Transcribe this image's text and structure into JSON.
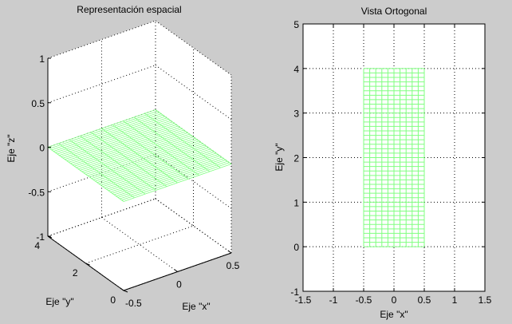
{
  "chart_data": [
    {
      "type": "surface-mesh-3d",
      "title": "Representación espacial",
      "xlabel": "Eje \"x\"",
      "ylabel": "Eje \"y\"",
      "zlabel": "Eje \"z\"",
      "xlim": [
        -0.5,
        0.5
      ],
      "ylim": [
        0,
        4
      ],
      "zlim": [
        -1,
        1
      ],
      "xticks": [
        -0.5,
        0,
        0.5
      ],
      "xtick_labels": [
        "-0.5",
        "0",
        "0.5"
      ],
      "yticks": [
        0,
        2,
        4
      ],
      "ytick_labels": [
        "0",
        "2",
        "4"
      ],
      "zticks": [
        -1,
        -0.5,
        0,
        0.5,
        1
      ],
      "ztick_labels": [
        "-1",
        "-0.5",
        "0",
        "0.5",
        "1"
      ],
      "grid": true,
      "mesh": {
        "x_start": -0.5,
        "x_end": 0.5,
        "x_step": 0.1,
        "y_start": 0,
        "y_end": 4,
        "y_step": 0.1,
        "z": 0,
        "color": "#80ff80"
      }
    },
    {
      "type": "mesh-2d",
      "title": "Vista Ortogonal",
      "xlabel": "Eje \"x\"",
      "ylabel": "Eje \"y\"",
      "xlim": [
        -1.5,
        1.5
      ],
      "ylim": [
        -1,
        5
      ],
      "xticks": [
        -1.5,
        -1,
        -0.5,
        0,
        0.5,
        1,
        1.5
      ],
      "xtick_labels": [
        "-1.5",
        "-1",
        "-0.5",
        "0",
        "0.5",
        "1",
        "1.5"
      ],
      "yticks": [
        -1,
        0,
        1,
        2,
        3,
        4,
        5
      ],
      "ytick_labels": [
        "-1",
        "0",
        "1",
        "2",
        "3",
        "4",
        "5"
      ],
      "grid": true,
      "mesh": {
        "x_start": -0.5,
        "x_end": 0.5,
        "x_step": 0.1,
        "y_start": 0,
        "y_end": 4,
        "y_step": 0.1,
        "color": "#80ff80"
      }
    }
  ]
}
